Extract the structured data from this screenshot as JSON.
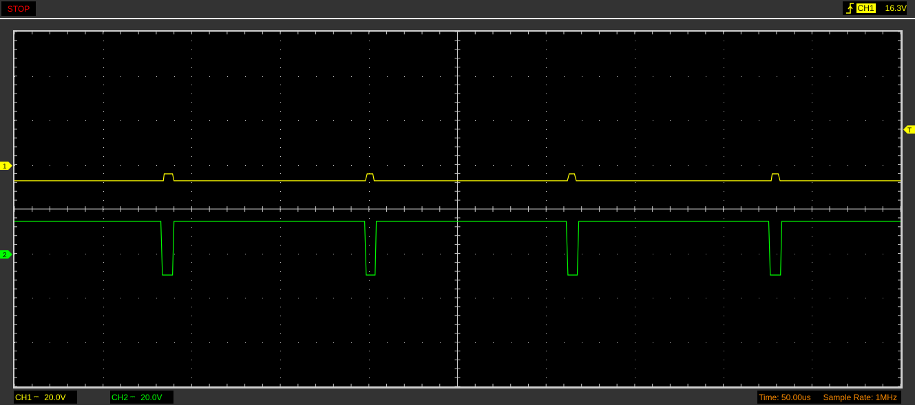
{
  "status": {
    "run_state": "STOP",
    "color": "#ff0000"
  },
  "trigger": {
    "icon": "rising-edge-icon",
    "source": "CH1",
    "level": "16.3V"
  },
  "channels": [
    {
      "label": "CH1",
      "coupling_icon": "dc-coupling-icon",
      "scale": "20.0V",
      "marker": "1",
      "color": "#ffff00"
    },
    {
      "label": "CH2",
      "coupling_icon": "dc-coupling-icon",
      "scale": "20.0V",
      "marker": "2",
      "color": "#00ff00"
    }
  ],
  "trigger_marker": "T",
  "timebase": {
    "time": "Time: 50.00us",
    "sample_rate": "Sample Rate: 1MHz"
  },
  "chart_data": {
    "type": "line",
    "x_unit": "us",
    "y_unit": "V",
    "xlim": [
      -250,
      250
    ],
    "x_divisions": 10,
    "y_divisions": 8,
    "grid": true,
    "series": [
      {
        "channel": "CH1",
        "color": "#ffff00",
        "volts_per_div": 20,
        "trigger_level": 16.3,
        "x": [
          -250,
          -166,
          -165.5,
          -160.8,
          -160,
          -52,
          -51,
          -47.8,
          -47,
          62,
          63,
          66,
          67,
          177,
          177.6,
          181,
          182,
          250
        ],
        "y": [
          -6.8,
          -6.8,
          -3.7,
          -3.7,
          -6.8,
          -6.8,
          -3.7,
          -3.7,
          -6.8,
          -6.8,
          -3.7,
          -3.7,
          -6.8,
          -6.8,
          -3.7,
          -3.7,
          -6.8,
          -6.8
        ]
      },
      {
        "channel": "CH2",
        "color": "#00ff00",
        "volts_per_div": 20,
        "x": [
          -250,
          -167.4,
          -166.5,
          -165,
          -160.8,
          -160,
          -52.4,
          -51.5,
          -50,
          -46.5,
          -45.8,
          61.4,
          62.3,
          63.5,
          67.6,
          68.4,
          175.6,
          176.5,
          178,
          182.3,
          183,
          250
        ],
        "y": [
          14.9,
          14.9,
          -9.3,
          -9.3,
          -9.3,
          14.9,
          14.9,
          -9.3,
          -9.3,
          -9.3,
          14.9,
          14.9,
          -9.3,
          -9.3,
          -9.3,
          14.9,
          14.9,
          -9.3,
          -9.3,
          -9.3,
          14.9,
          14.9
        ]
      }
    ]
  }
}
